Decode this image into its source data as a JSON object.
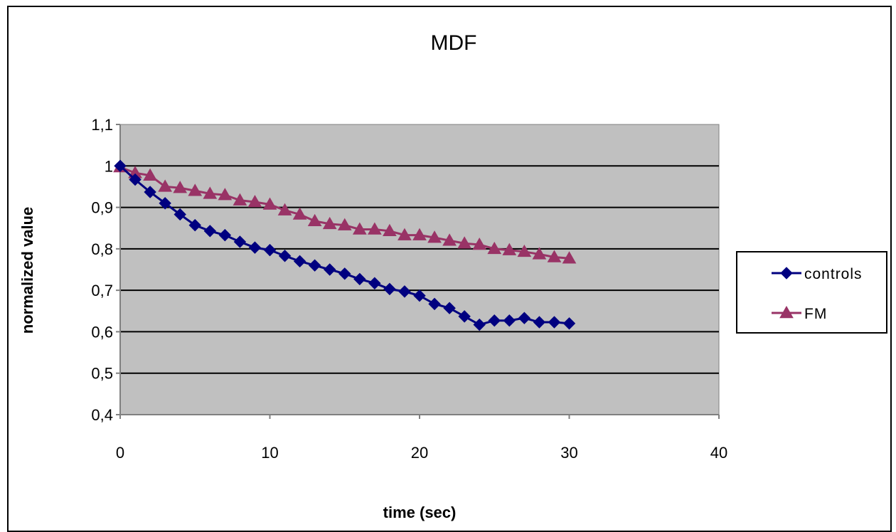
{
  "chart_data": {
    "type": "line",
    "title": "MDF",
    "xlabel": "time (sec)",
    "ylabel": "normalized value",
    "xlim": [
      0,
      40
    ],
    "ylim": [
      0.4,
      1.1
    ],
    "x_ticks": [
      "0",
      "10",
      "20",
      "30",
      "40"
    ],
    "y_ticks": [
      "0,4",
      "0,5",
      "0,6",
      "0,7",
      "0,8",
      "0,9",
      "1",
      "1,1"
    ],
    "x_tick_values": [
      0,
      10,
      20,
      30,
      40
    ],
    "y_tick_values": [
      0.4,
      0.5,
      0.6,
      0.7,
      0.8,
      0.9,
      1.0,
      1.1
    ],
    "grid": true,
    "plot_background": "#c0c0c0",
    "legend_position": "right",
    "x": [
      0,
      1,
      2,
      3,
      4,
      5,
      6,
      7,
      8,
      9,
      10,
      11,
      12,
      13,
      14,
      15,
      16,
      17,
      18,
      19,
      20,
      21,
      22,
      23,
      24,
      25,
      26,
      27,
      28,
      29,
      30
    ],
    "series": [
      {
        "name": "controls",
        "marker": "diamond",
        "color": "#000080",
        "values": [
          1.0,
          0.967,
          0.937,
          0.91,
          0.883,
          0.857,
          0.843,
          0.833,
          0.817,
          0.803,
          0.797,
          0.783,
          0.77,
          0.76,
          0.75,
          0.74,
          0.727,
          0.717,
          0.703,
          0.697,
          0.687,
          0.667,
          0.657,
          0.637,
          0.617,
          0.627,
          0.627,
          0.633,
          0.623,
          0.623,
          0.62
        ]
      },
      {
        "name": "FM",
        "marker": "triangle",
        "color": "#993366",
        "values": [
          0.997,
          0.983,
          0.977,
          0.95,
          0.947,
          0.94,
          0.933,
          0.93,
          0.917,
          0.913,
          0.907,
          0.893,
          0.883,
          0.867,
          0.86,
          0.857,
          0.847,
          0.847,
          0.843,
          0.833,
          0.833,
          0.827,
          0.82,
          0.813,
          0.81,
          0.8,
          0.797,
          0.793,
          0.787,
          0.78,
          0.777
        ]
      }
    ]
  }
}
